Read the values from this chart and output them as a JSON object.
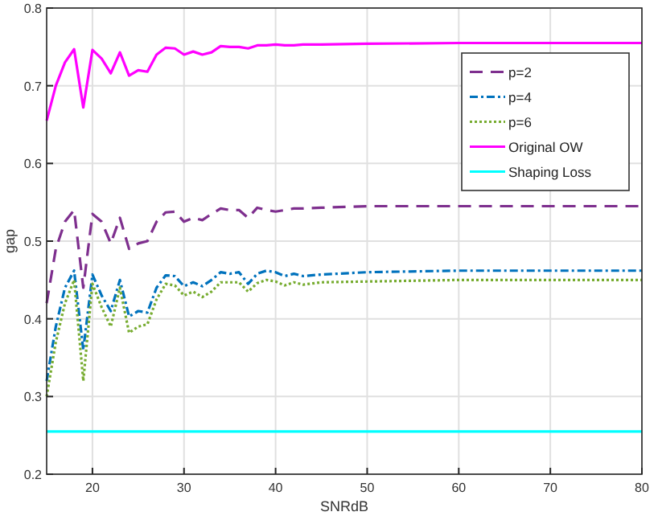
{
  "chart_data": {
    "type": "line",
    "xlabel": "SNRdB",
    "ylabel": "gap",
    "xlim": [
      15,
      80
    ],
    "ylim": [
      0.2,
      0.8
    ],
    "xticks": [
      20,
      30,
      40,
      50,
      60,
      70,
      80
    ],
    "yticks": [
      0.2,
      0.3,
      0.4,
      0.5,
      0.6,
      0.7,
      0.8
    ],
    "grid": true,
    "legend": "top right",
    "x": [
      15,
      16,
      17,
      18,
      19,
      20,
      21,
      22,
      23,
      24,
      25,
      26,
      27,
      28,
      29,
      30,
      31,
      32,
      33,
      34,
      35,
      36,
      37,
      38,
      39,
      40,
      41,
      42,
      43,
      45,
      50,
      60,
      80
    ],
    "series": [
      {
        "name": "p=2",
        "color": "#7e2f8e",
        "line_style": "dashed",
        "values": [
          0.42,
          0.49,
          0.525,
          0.54,
          0.44,
          0.535,
          0.525,
          0.497,
          0.53,
          0.49,
          0.497,
          0.5,
          0.525,
          0.537,
          0.538,
          0.525,
          0.53,
          0.527,
          0.535,
          0.542,
          0.54,
          0.54,
          0.53,
          0.543,
          0.54,
          0.538,
          0.54,
          0.542,
          0.542,
          0.543,
          0.545,
          0.545,
          0.545
        ]
      },
      {
        "name": "p=4",
        "color": "#0072bd",
        "line_style": "dashdot",
        "values": [
          0.32,
          0.39,
          0.44,
          0.462,
          0.36,
          0.457,
          0.43,
          0.41,
          0.45,
          0.403,
          0.41,
          0.408,
          0.44,
          0.456,
          0.455,
          0.442,
          0.447,
          0.442,
          0.45,
          0.46,
          0.458,
          0.46,
          0.445,
          0.458,
          0.462,
          0.46,
          0.455,
          0.458,
          0.455,
          0.457,
          0.46,
          0.462,
          0.462
        ]
      },
      {
        "name": "p=6",
        "color": "#77ac30",
        "line_style": "dotted",
        "values": [
          0.3,
          0.37,
          0.42,
          0.45,
          0.32,
          0.445,
          0.415,
          0.39,
          0.44,
          0.382,
          0.39,
          0.393,
          0.425,
          0.445,
          0.443,
          0.43,
          0.435,
          0.428,
          0.435,
          0.447,
          0.447,
          0.447,
          0.435,
          0.446,
          0.45,
          0.448,
          0.443,
          0.447,
          0.444,
          0.447,
          0.448,
          0.45,
          0.45
        ]
      },
      {
        "name": "Original OW",
        "color": "#ff00ff",
        "line_style": "solid",
        "values": [
          0.655,
          0.7,
          0.73,
          0.747,
          0.672,
          0.746,
          0.735,
          0.716,
          0.743,
          0.713,
          0.72,
          0.718,
          0.74,
          0.749,
          0.748,
          0.74,
          0.744,
          0.74,
          0.743,
          0.751,
          0.75,
          0.75,
          0.748,
          0.752,
          0.752,
          0.753,
          0.752,
          0.752,
          0.753,
          0.753,
          0.754,
          0.755,
          0.755
        ]
      },
      {
        "name": "Shaping Loss",
        "color": "#00ffff",
        "line_style": "solid",
        "values": [
          0.255,
          0.255,
          0.255,
          0.255,
          0.255,
          0.255,
          0.255,
          0.255,
          0.255,
          0.255,
          0.255,
          0.255,
          0.255,
          0.255,
          0.255,
          0.255,
          0.255,
          0.255,
          0.255,
          0.255,
          0.255,
          0.255,
          0.255,
          0.255,
          0.255,
          0.255,
          0.255,
          0.255,
          0.255,
          0.255,
          0.255,
          0.255,
          0.255
        ]
      }
    ]
  }
}
